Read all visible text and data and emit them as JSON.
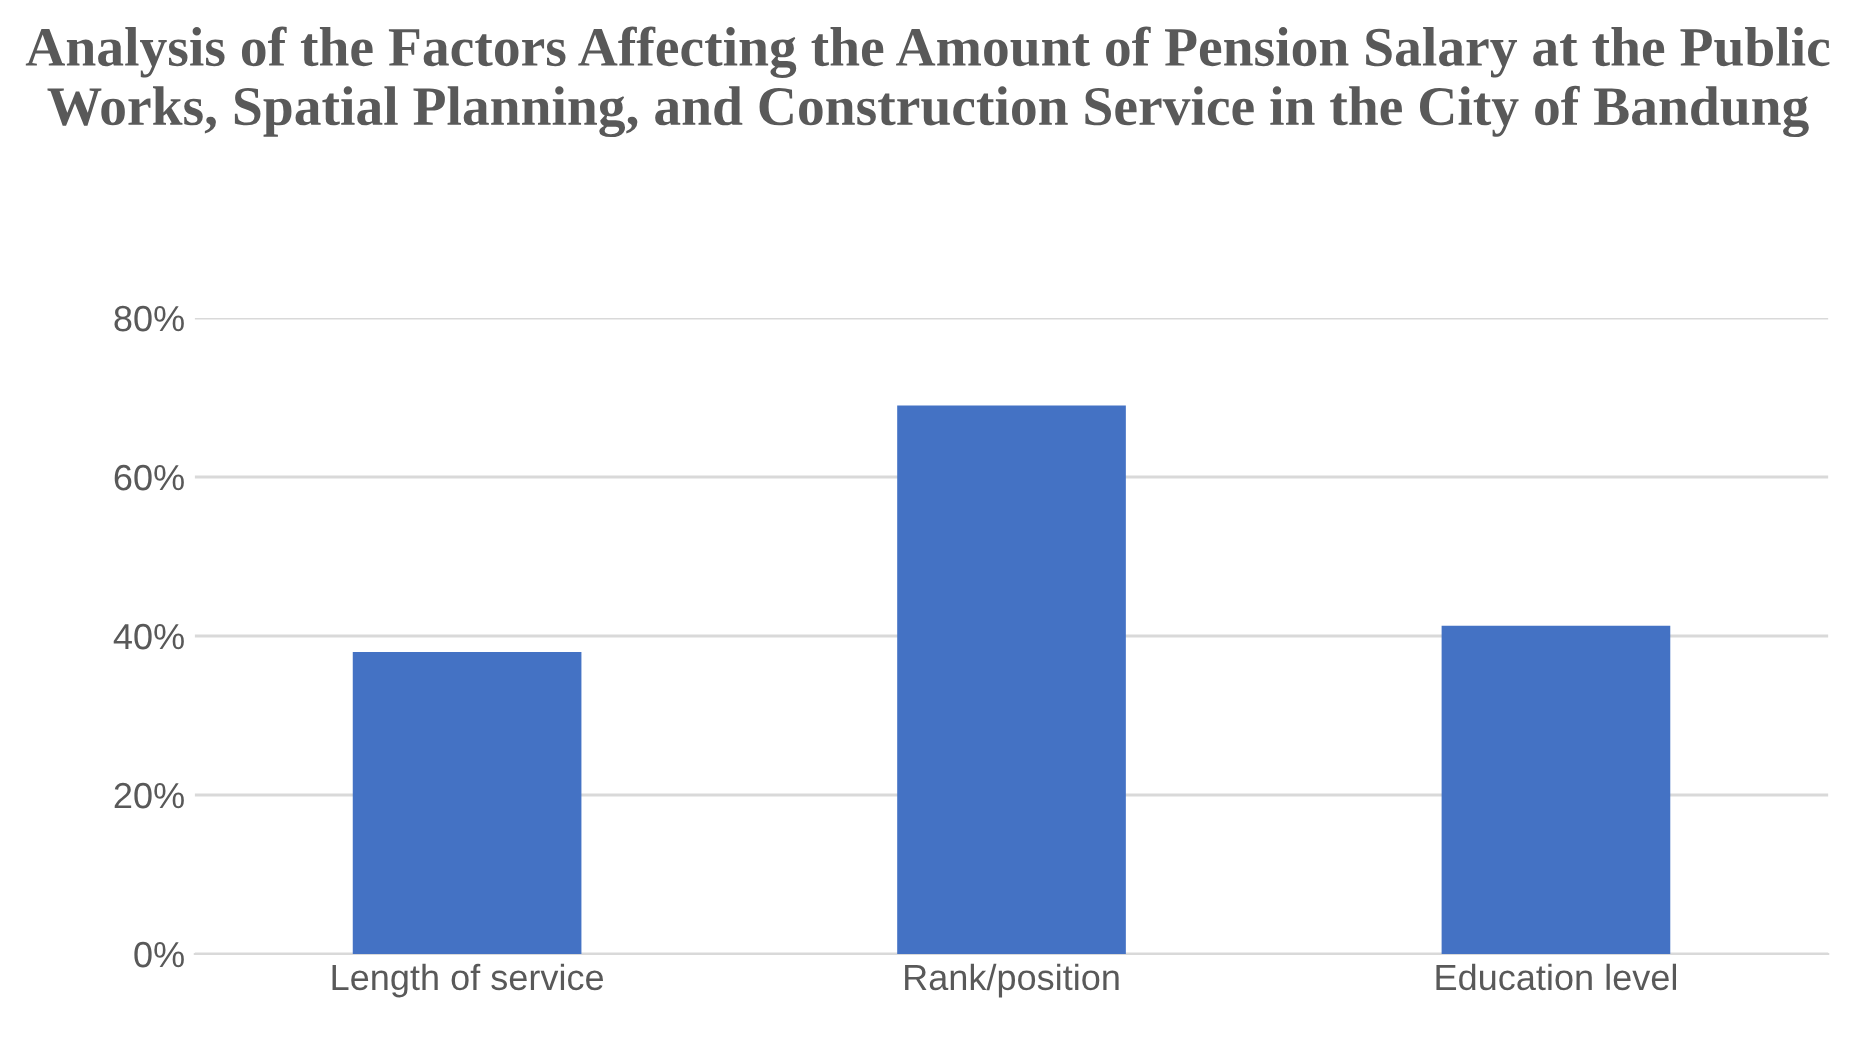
{
  "chart_data": {
    "type": "bar",
    "title": "Analysis of the Factors Affecting the Amount of Pension Salary at the Public Works, Spatial Planning, and Construction Service in the City of Bandung",
    "categories": [
      "Length of service",
      "Rank/position",
      "Education level"
    ],
    "values": [
      38.0,
      69.0,
      41.3
    ],
    "color": "#4472c4",
    "ylim": [
      0,
      80
    ],
    "yticks": [
      {
        "value": 0,
        "label": "0%"
      },
      {
        "value": 20,
        "label": "20%"
      },
      {
        "value": 40,
        "label": "40%"
      },
      {
        "value": 60,
        "label": "60%"
      },
      {
        "value": 80,
        "label": "80%"
      }
    ],
    "grid": "y"
  }
}
